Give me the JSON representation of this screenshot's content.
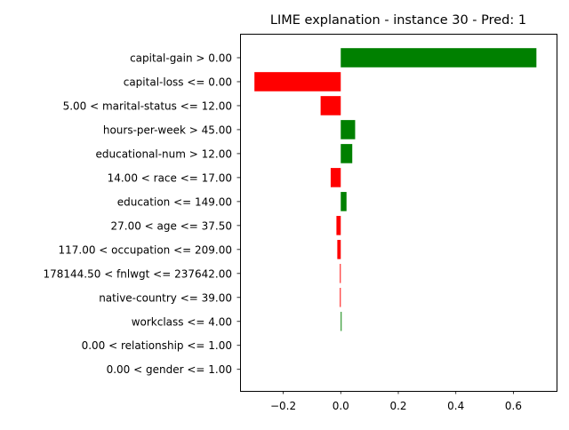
{
  "chart_data": {
    "type": "bar",
    "orientation": "horizontal",
    "title": "LIME explanation - instance 30 - Pred: 1",
    "xlabel": "",
    "ylabel": "",
    "xlim": [
      -0.35,
      0.75
    ],
    "xticks": [
      -0.2,
      0.0,
      0.2,
      0.4,
      0.6
    ],
    "xtick_labels": [
      "−0.2",
      "0.0",
      "0.2",
      "0.4",
      "0.6"
    ],
    "grid": false,
    "categories": [
      "capital-gain > 0.00",
      "capital-loss <= 0.00",
      "5.00 < marital-status <= 12.00",
      "hours-per-week > 45.00",
      "educational-num > 12.00",
      "14.00 < race <= 17.00",
      "education <= 149.00",
      "27.00 < age <= 37.50",
      "117.00 < occupation <= 209.00",
      "178144.50 < fnlwgt <= 237642.00",
      "native-country <= 39.00",
      "workclass <= 4.00",
      "0.00 < relationship <= 1.00",
      "0.00 < gender <= 1.00"
    ],
    "values": [
      0.68,
      -0.3,
      -0.07,
      0.05,
      0.04,
      -0.035,
      0.02,
      -0.015,
      -0.012,
      -0.003,
      -0.003,
      0.003,
      0.0,
      0.0
    ],
    "colors": {
      "positive": "#008000",
      "negative": "#ff0000"
    }
  }
}
